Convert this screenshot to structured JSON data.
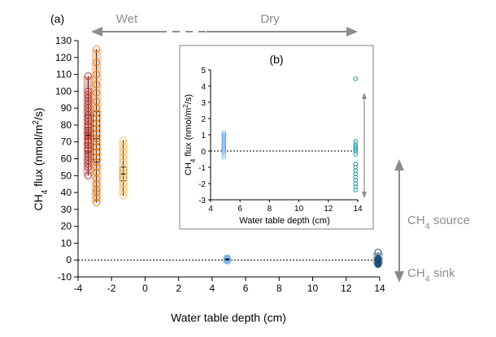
{
  "chart_data": [
    {
      "panel_label": "(a)",
      "type": "box-scatter",
      "xlabel": "Water table depth (cm)",
      "ylabel": "CH4 flux (nmol/m2/s)",
      "xlim": [
        -4,
        14
      ],
      "ylim": [
        -10,
        130
      ],
      "xticks": [
        -4,
        -2,
        0,
        2,
        4,
        6,
        8,
        10,
        12,
        14
      ],
      "yticks": [
        -10,
        0,
        10,
        20,
        30,
        40,
        50,
        60,
        70,
        80,
        90,
        100,
        110,
        120,
        130
      ],
      "zero_line": true,
      "groups": [
        {
          "x": -3.4,
          "color": "#c0392b",
          "min": 50,
          "q1": 64,
          "median": 74,
          "q3": 86,
          "max": 109,
          "points": [
            50,
            55,
            57,
            59,
            61,
            63,
            65,
            66,
            68,
            70,
            71,
            73,
            74,
            75,
            77,
            79,
            80,
            82,
            84,
            86,
            88,
            90,
            92,
            94,
            96,
            98,
            100,
            109
          ]
        },
        {
          "x": -2.9,
          "color": "#e67e22",
          "min": 34,
          "q1": 58,
          "median": 72,
          "q3": 88,
          "max": 125,
          "points": [
            34,
            37,
            40,
            42,
            45,
            48,
            52,
            55,
            58,
            61,
            64,
            67,
            70,
            72,
            75,
            78,
            81,
            84,
            87,
            90,
            94,
            99,
            104,
            110,
            117,
            125
          ]
        },
        {
          "x": -1.3,
          "color": "#f5c26b",
          "min": 38,
          "q1": 47,
          "median": 51,
          "q3": 55,
          "max": 71,
          "points": [
            38,
            42,
            45,
            48,
            50,
            52,
            54,
            58,
            61,
            64,
            67,
            71
          ]
        },
        {
          "x": 4.9,
          "color": "#7fb6e6",
          "min": -0.5,
          "q1": 0,
          "median": 0.5,
          "q3": 0.8,
          "max": 1.2,
          "points": [
            -0.5,
            0,
            0.3,
            0.5,
            0.8,
            1.2
          ]
        },
        {
          "x": 13.9,
          "color": "#1f4e79",
          "min": -2.5,
          "q1": -1.8,
          "median": -1,
          "q3": -0.2,
          "max": 4.5,
          "points": [
            -2.5,
            -2.2,
            -1.8,
            -1.4,
            -1,
            -0.6,
            -0.2,
            0.3,
            0.6,
            4.5
          ]
        }
      ]
    },
    {
      "panel_label": "(b)",
      "type": "scatter",
      "xlabel": "Water table depth (cm)",
      "ylabel": "CH4 flux (nmol/m2/s)",
      "xlim": [
        4,
        14
      ],
      "ylim": [
        -3,
        5
      ],
      "xticks": [
        4,
        6,
        8,
        10,
        12,
        14
      ],
      "yticks": [
        -3,
        -2,
        -1,
        0,
        1,
        2,
        3,
        4,
        5
      ],
      "zero_line": true,
      "groups": [
        {
          "x": 4.9,
          "color": "#6aa8e8",
          "points": [
            -0.35,
            -0.1,
            0,
            0.1,
            0.2,
            0.3,
            0.4,
            0.5,
            0.6,
            0.7,
            0.8,
            0.9,
            1.0,
            1.1
          ]
        },
        {
          "x": 13.85,
          "color": "#1a9aa8",
          "points": [
            -2.4,
            -2.2,
            -2.0,
            -1.8,
            -1.6,
            -1.4,
            -1.2,
            -1.0,
            -0.8,
            -0.2,
            0,
            0.1,
            0.2,
            0.3,
            0.4,
            0.6,
            4.45
          ]
        }
      ]
    }
  ],
  "annotations": {
    "wet": "Wet",
    "dry": "Dry",
    "source_prefix": "CH",
    "source_sub": "4",
    "source_suffix": " source",
    "sink_prefix": "CH",
    "sink_sub": "4",
    "sink_suffix": " sink"
  },
  "arrow_color": "#8c8c8c"
}
